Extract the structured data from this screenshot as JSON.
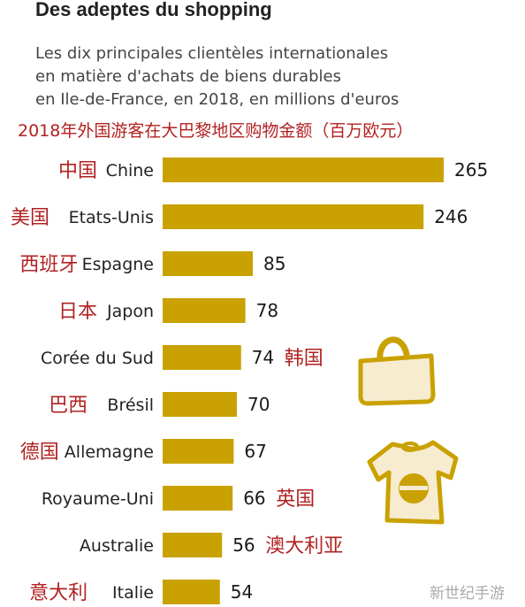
{
  "title": "Des adeptes du shopping",
  "subtitle_lines": [
    "Les dix principales clientèles internationales",
    "en matière d'achats de biens durables",
    "en Ile-de-France, en 2018, en millions d'euros"
  ],
  "chinese_title": "2018年外国游客在大巴黎地区购物金额（百万欧元）",
  "watermark": "新世纪手游",
  "icons": {
    "bag": "shopping-bag-icon",
    "shirt": "t-shirt-icon"
  },
  "colors": {
    "bar": "#c9a100",
    "chinese_text": "#b22222",
    "text": "#222222",
    "value": "#1a1a1a"
  },
  "chart_data": {
    "type": "bar",
    "orientation": "horizontal",
    "title": "Des adeptes du shopping",
    "categories": [
      "Chine",
      "Etats-Unis",
      "Espagne",
      "Japon",
      "Corée du Sud",
      "Brésil",
      "Allemagne",
      "Royaume-Uni",
      "Australie",
      "Italie"
    ],
    "categories_cn": [
      "中国",
      "美国",
      "西班牙",
      "日本",
      "韩国",
      "巴西",
      "德国",
      "英国",
      "澳大利亚",
      "意大利"
    ],
    "cn_position": [
      "left",
      "left",
      "left",
      "left",
      "right",
      "left",
      "left",
      "right",
      "right",
      "left"
    ],
    "values": [
      265,
      246,
      85,
      78,
      74,
      70,
      67,
      66,
      56,
      54
    ],
    "xlim": [
      0,
      265
    ],
    "grid": false,
    "legend": "none"
  }
}
